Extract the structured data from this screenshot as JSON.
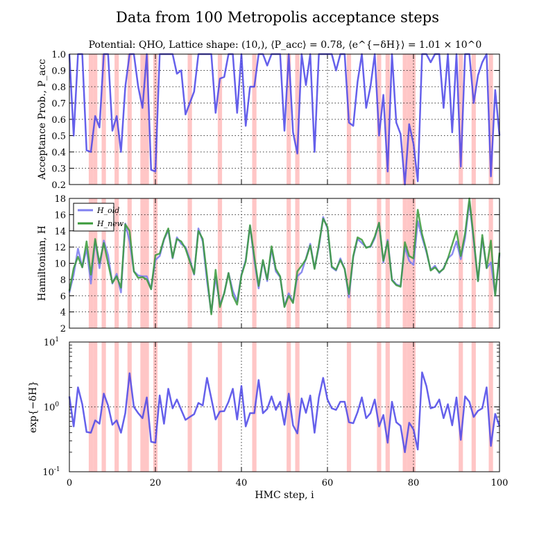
{
  "chart_data": [
    {
      "type": "line",
      "panel": "acceptance",
      "title": "Data from 100 Metropolis acceptance steps",
      "subtitle": "Potential: QHO, Lattice shape: (10,), ⟨P_acc⟩ = 0.78, ⟨e^{−δH}⟩ = 1.01 × 10^0",
      "ylabel": "Acceptance Prob., P_acc",
      "xlim": [
        0,
        100
      ],
      "ylim": [
        0.2,
        1.0
      ],
      "yticks": [
        "1.0",
        "0.9",
        "0.8",
        "0.7",
        "0.6",
        "0.5",
        "0.4",
        "0.3",
        "0.2"
      ],
      "series": [
        {
          "name": "P_acc",
          "color": "#4a44e8",
          "values": [
            1.0,
            0.5,
            1.0,
            1.0,
            0.41,
            0.4,
            0.62,
            0.55,
            1.0,
            1.0,
            0.53,
            0.62,
            0.4,
            0.8,
            1.0,
            1.0,
            0.8,
            0.67,
            1.0,
            0.29,
            0.28,
            1.0,
            1.0,
            1.0,
            1.0,
            0.88,
            0.9,
            0.63,
            0.7,
            0.77,
            1.0,
            1.0,
            1.0,
            1.0,
            0.64,
            0.85,
            0.86,
            1.0,
            1.0,
            0.64,
            1.0,
            0.56,
            0.8,
            0.8,
            1.0,
            1.0,
            0.93,
            1.0,
            1.0,
            1.0,
            0.53,
            1.0,
            0.52,
            0.39,
            1.0,
            0.81,
            1.0,
            0.4,
            1.0,
            1.0,
            1.0,
            1.0,
            0.9,
            1.0,
            1.0,
            0.58,
            0.56,
            0.83,
            1.0,
            0.67,
            0.8,
            1.0,
            0.5,
            0.75,
            0.28,
            1.0,
            0.58,
            0.51,
            0.2,
            0.57,
            0.45,
            0.22,
            1.0,
            1.0,
            0.95,
            1.0,
            1.0,
            0.67,
            1.0,
            0.52,
            1.0,
            0.31,
            1.0,
            1.0,
            0.7,
            0.87,
            0.95,
            1.0,
            0.25,
            0.78,
            0.5
          ]
        }
      ]
    },
    {
      "type": "line",
      "panel": "hamiltonian",
      "ylabel": "Hamiltonian, H",
      "xlim": [
        0,
        100
      ],
      "ylim": [
        2,
        18
      ],
      "yticks": [
        "18",
        "16",
        "14",
        "12",
        "10",
        "8",
        "6",
        "4",
        "2"
      ],
      "legend": {
        "location": "top-left",
        "entries": [
          "H_old",
          "H_new"
        ]
      },
      "series": [
        {
          "name": "H_old",
          "color": "#8080f0",
          "values": [
            6.4,
            8.6,
            11.8,
            9.5,
            11.8,
            7.5,
            12.8,
            9.4,
            12.8,
            11.0,
            7.5,
            8.7,
            6.4,
            14.9,
            12.7,
            9.0,
            8.5,
            8.4,
            8.4,
            6.8,
            10.4,
            10.9,
            12.9,
            14.1,
            10.6,
            13.2,
            12.4,
            12.0,
            10.5,
            8.6,
            14.3,
            12.7,
            7.8,
            3.9,
            8.3,
            4.9,
            6.3,
            8.8,
            6.6,
            5.3,
            8.6,
            10.4,
            14.6,
            10.3,
            6.9,
            10.3,
            7.8,
            11.8,
            9.0,
            8.3,
            4.7,
            6.3,
            5.2,
            8.4,
            8.9,
            10.6,
            12.4,
            9.4,
            12.0,
            15.7,
            14.3,
            9.5,
            9.1,
            10.6,
            9.3,
            5.8,
            10.8,
            13.0,
            12.5,
            12.0,
            12.0,
            13.1,
            15.0,
            10.1,
            12.9,
            8.0,
            7.4,
            7.2,
            12.0,
            10.3,
            9.8,
            15.2,
            13.2,
            11.4,
            9.2,
            9.7,
            8.8,
            9.4,
            10.6,
            11.1,
            12.7,
            10.5,
            13.1,
            17.6,
            12.7,
            7.8,
            13.1,
            9.4,
            10.1,
            6.1,
            11.1
          ]
        },
        {
          "name": "H_new",
          "color": "#3a9a3a",
          "values": [
            6.6,
            9.4,
            10.8,
            9.5,
            12.7,
            8.6,
            13.0,
            10.0,
            12.5,
            10.0,
            7.6,
            8.4,
            7.0,
            14.8,
            14.0,
            9.0,
            8.2,
            8.3,
            8.0,
            6.8,
            11.0,
            11.2,
            13.0,
            14.3,
            10.7,
            13.0,
            12.7,
            11.8,
            10.2,
            8.7,
            14.0,
            13.0,
            8.5,
            3.7,
            9.2,
            4.6,
            6.3,
            8.8,
            6.0,
            4.9,
            8.5,
            10.2,
            14.7,
            10.8,
            7.2,
            10.4,
            8.0,
            12.1,
            9.3,
            8.4,
            4.6,
            6.0,
            5.1,
            9.0,
            9.7,
            10.5,
            12.2,
            9.3,
            12.3,
            15.5,
            14.5,
            9.6,
            9.2,
            10.4,
            9.3,
            6.2,
            10.9,
            13.2,
            12.9,
            11.9,
            12.1,
            13.3,
            15.0,
            10.3,
            12.7,
            7.9,
            7.3,
            7.1,
            12.6,
            10.9,
            10.6,
            16.6,
            13.6,
            11.6,
            9.1,
            9.5,
            8.9,
            9.3,
            10.6,
            12.3,
            14.0,
            10.9,
            13.7,
            18.1,
            13.1,
            7.8,
            13.5,
            9.4,
            12.8,
            6.0,
            11.3
          ]
        }
      ]
    },
    {
      "type": "line",
      "panel": "exp-dH",
      "ylabel": "exp{−δH}",
      "xlabel": "HMC step, i",
      "xlim": [
        0,
        100
      ],
      "ylim_log10": [
        -1,
        1
      ],
      "xticks": [
        "0",
        "20",
        "40",
        "60",
        "80",
        "100"
      ],
      "yticks": [
        "10^1",
        "10^0",
        "10^-1"
      ],
      "series": [
        {
          "name": "exp(-dH)",
          "color": "#4a44e8",
          "values": [
            1.45,
            0.5,
            2.0,
            1.1,
            0.41,
            0.4,
            0.62,
            0.55,
            1.6,
            1.05,
            0.53,
            0.62,
            0.4,
            0.8,
            3.3,
            1.0,
            0.8,
            0.67,
            1.4,
            0.29,
            0.28,
            1.5,
            0.55,
            1.9,
            0.95,
            1.3,
            0.9,
            0.63,
            0.7,
            0.77,
            1.15,
            1.05,
            2.8,
            1.35,
            0.64,
            0.85,
            0.86,
            1.2,
            1.9,
            0.64,
            2.1,
            0.5,
            0.8,
            0.8,
            2.6,
            0.8,
            0.93,
            1.45,
            0.9,
            1.2,
            0.53,
            1.6,
            0.52,
            0.39,
            1.35,
            0.81,
            1.5,
            0.4,
            1.4,
            2.8,
            1.3,
            0.95,
            0.9,
            1.2,
            1.2,
            0.58,
            0.56,
            0.83,
            1.4,
            0.67,
            0.8,
            1.3,
            0.5,
            0.75,
            0.28,
            1.2,
            0.58,
            0.51,
            0.2,
            0.57,
            0.45,
            0.22,
            3.4,
            2.1,
            0.95,
            1.0,
            1.3,
            0.67,
            1.1,
            0.52,
            1.4,
            0.31,
            1.45,
            1.2,
            0.7,
            0.87,
            0.95,
            2.0,
            0.25,
            0.78,
            0.5
          ]
        }
      ]
    }
  ],
  "rejected_steps": [
    5,
    6,
    8,
    11,
    14,
    17,
    18,
    20,
    28,
    35,
    43,
    51,
    53,
    65,
    72,
    74,
    78,
    79,
    80,
    91,
    94,
    98
  ],
  "reject_color": "#ffb3b3",
  "vline_at": 20
}
